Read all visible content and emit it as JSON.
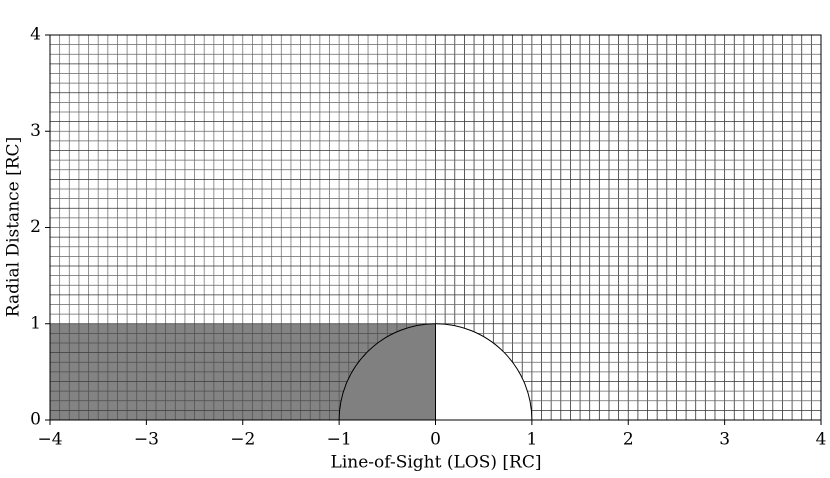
{
  "chart_data": {
    "type": "grid-diagram",
    "xlabel": "Line-of-Sight (LOS) [RC]",
    "ylabel": "Radial Distance [RC]",
    "xlim": [
      -4,
      4
    ],
    "ylim": [
      0,
      4
    ],
    "xticks": [
      {
        "value": -4,
        "label": "−4"
      },
      {
        "value": -3,
        "label": "−3"
      },
      {
        "value": -2,
        "label": "−2"
      },
      {
        "value": -1,
        "label": "−1"
      },
      0,
      1,
      2,
      3,
      4
    ],
    "yticks": [
      0,
      1,
      2,
      3,
      4
    ],
    "shaded_x": [
      -4,
      0
    ],
    "shaded_y": [
      0,
      1
    ],
    "radius": 1,
    "shade_color": "#404040",
    "disk_color": "#808080"
  }
}
